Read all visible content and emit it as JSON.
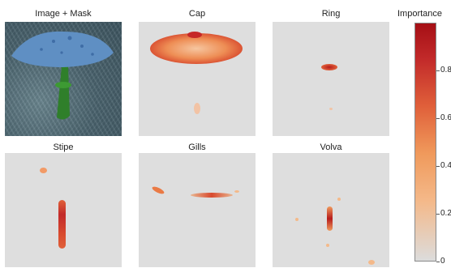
{
  "panels": [
    {
      "title": "Image + Mask"
    },
    {
      "title": "Cap"
    },
    {
      "title": "Ring"
    },
    {
      "title": "Stipe"
    },
    {
      "title": "Gills"
    },
    {
      "title": "Volva"
    }
  ],
  "colorbar": {
    "title": "Importance",
    "ticks": [
      "0",
      "0.2",
      "0.4",
      "0.6",
      "0.8"
    ],
    "colors": [
      "#dcdcdc",
      "#f4b98a",
      "#f09a5c",
      "#e0603a",
      "#c22a2a",
      "#a50f15"
    ]
  }
}
